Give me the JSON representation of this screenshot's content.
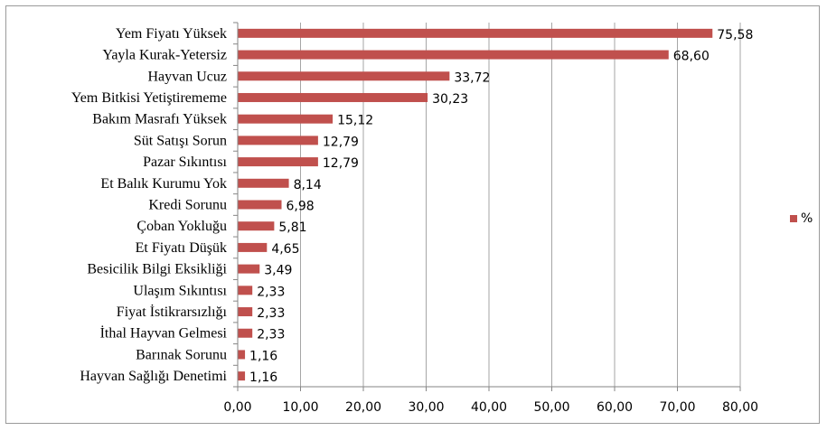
{
  "chart_data": {
    "type": "bar",
    "orientation": "horizontal",
    "categories": [
      "Yem Fiyatı Yüksek",
      "Yayla Kurak-Yetersiz",
      "Hayvan Ucuz",
      "Yem Bitkisi Yetiştirememe",
      "Bakım Masrafı Yüksek",
      "Süt Satışı Sorun",
      "Pazar Sıkıntısı",
      "Et Balık Kurumu Yok",
      "Kredi Sorunu",
      "Çoban Yokluğu",
      "Et Fiyatı Düşük",
      "Besicilik Bilgi Eksikliği",
      "Ulaşım Sıkıntısı",
      "Fiyat İstikrarsızlığı",
      "İthal Hayvan Gelmesi",
      "Barınak Sorunu",
      "Hayvan Sağlığı Denetimi"
    ],
    "series": [
      {
        "name": "%",
        "values": [
          75.58,
          68.6,
          33.72,
          30.23,
          15.12,
          12.79,
          12.79,
          8.14,
          6.98,
          5.81,
          4.65,
          3.49,
          2.33,
          2.33,
          2.33,
          1.16,
          1.16
        ],
        "value_labels": [
          "75,58",
          "68,60",
          "33,72",
          "30,23",
          "15,12",
          "12,79",
          "12,79",
          "8,14",
          "6,98",
          "5,81",
          "4,65",
          "3,49",
          "2,33",
          "2,33",
          "2,33",
          "1,16",
          "1,16"
        ],
        "color": "#c0504d"
      }
    ],
    "xlim": [
      0,
      80
    ],
    "xticks": [
      0,
      10,
      20,
      30,
      40,
      50,
      60,
      70,
      80
    ],
    "xtick_labels": [
      "0,00",
      "10,00",
      "20,00",
      "30,00",
      "40,00",
      "50,00",
      "60,00",
      "70,00",
      "80,00"
    ],
    "grid": "vertical",
    "gridline_color": "#a6a6a6",
    "legend_position": "right",
    "title": "",
    "xlabel": "",
    "ylabel": ""
  }
}
